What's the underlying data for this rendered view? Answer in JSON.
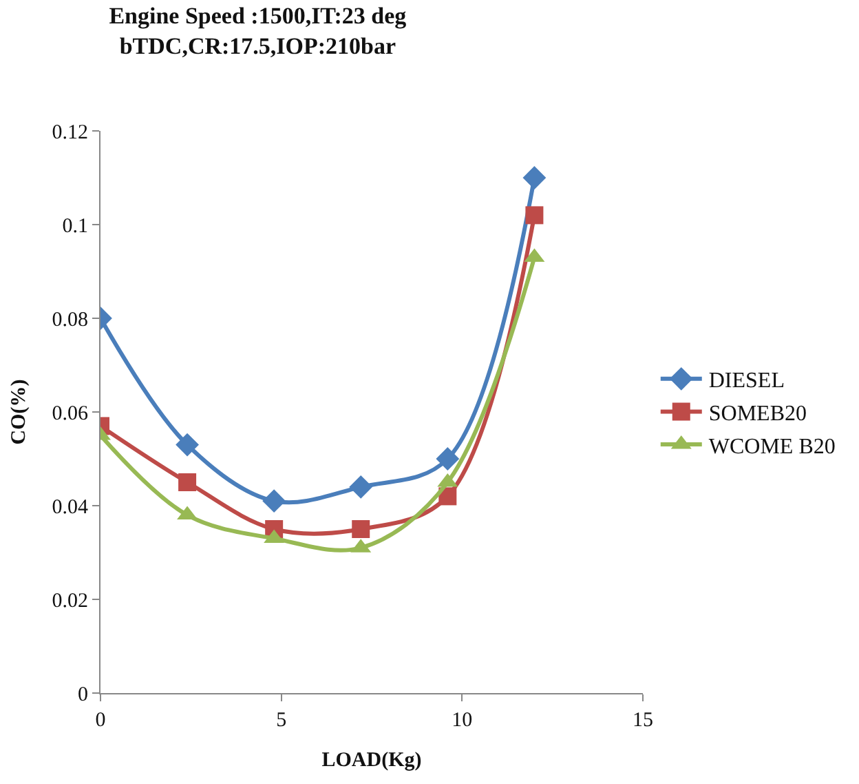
{
  "chart_data": {
    "type": "line",
    "title": "Engine Speed :1500,IT:23 deg\nbTDC,CR:17.5,IOP:210bar",
    "xlabel": "LOAD(Kg)",
    "ylabel": "CO(%)",
    "x": [
      0,
      2.4,
      4.8,
      7.2,
      9.6,
      12
    ],
    "series": [
      {
        "name": "DIESEL",
        "color": "#4a7ebb",
        "marker": "diamond",
        "values": [
          0.08,
          0.053,
          0.041,
          0.044,
          0.05,
          0.11
        ]
      },
      {
        "name": "SOMEB20",
        "color": "#be4b48",
        "marker": "square",
        "values": [
          0.057,
          0.045,
          0.035,
          0.035,
          0.042,
          0.102
        ]
      },
      {
        "name": "WCOME B20",
        "color": "#98b954",
        "marker": "triangle",
        "values": [
          0.055,
          0.038,
          0.033,
          0.031,
          0.045,
          0.093
        ]
      }
    ],
    "xlim": [
      0,
      15
    ],
    "xticks": [
      0,
      5,
      10,
      15
    ],
    "ylim": [
      0,
      0.12
    ],
    "yticks": [
      0,
      0.02,
      0.04,
      0.06,
      0.08,
      0.1,
      0.12
    ],
    "legend": "right",
    "line_style": "solid"
  }
}
